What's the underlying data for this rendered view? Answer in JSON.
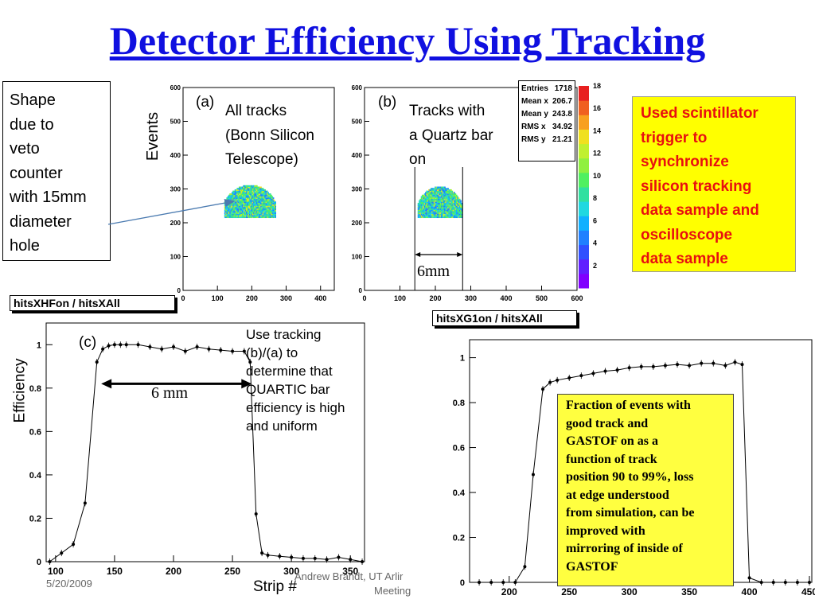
{
  "slide": {
    "title": "Detector Efficiency Using Tracking",
    "footer_date": "5/20/2009",
    "footer_author": "Andrew Brandt, UT Arlir",
    "footer_author2": "Meeting"
  },
  "notes": {
    "shape_lines": [
      "Shape",
      "due to",
      "veto",
      "counter",
      "with 15mm",
      "diameter",
      "hole"
    ],
    "sync_lines": [
      "Used scintillator",
      "trigger to",
      "synchronize",
      "silicon tracking",
      "data sample and",
      "oscilloscope",
      "data sample"
    ],
    "tracking_lines": [
      "Use tracking",
      "(b)/(a) to",
      "determine that",
      "QUARTIC bar",
      "efficiency is high",
      "and uniform"
    ],
    "fraction_lines": [
      "Fraction of events with",
      "good track and",
      "GASTOF on as a",
      "function of track",
      "position 90 to 99%, loss",
      "at edge understood",
      "from simulation, can be",
      "improved with",
      "mirroring of inside of",
      "GASTOF"
    ]
  },
  "colors": {
    "title": "#1010e0",
    "sync_text": "#e81010",
    "sync_bg": "#ffff00",
    "fraction_bg": "#ffff40"
  },
  "chart_data": [
    {
      "type": "heatmap",
      "id": "a",
      "tag": "(a)",
      "caption_lines": [
        "All tracks",
        "(Bonn Silicon",
        "Telescope)"
      ],
      "ylabel": "Events",
      "hist_title": "hitsXHFon / hitsXAll",
      "xlim": [
        0,
        440
      ],
      "ylim": [
        0,
        600
      ],
      "xticks": [
        0,
        100,
        200,
        300,
        400
      ],
      "yticks": [
        0,
        100,
        200,
        300,
        400,
        500,
        600
      ],
      "region": {
        "x_from": 120,
        "x_to": 270,
        "y_from": 215,
        "y_top": 310
      },
      "arrow_annotation": "Shape due to veto counter with 15mm diameter hole"
    },
    {
      "type": "heatmap",
      "id": "b",
      "tag": "(b)",
      "caption_lines": [
        "Tracks with",
        "a Quartz bar",
        "on"
      ],
      "hist_title": "hitsXG1on / hitsXAll",
      "xlim": [
        0,
        600
      ],
      "ylim": [
        0,
        600
      ],
      "xticks": [
        0,
        100,
        200,
        300,
        400,
        500,
        600
      ],
      "yticks": [
        0,
        100,
        200,
        300,
        400,
        500,
        600
      ],
      "region": {
        "x_from": 150,
        "x_to": 275,
        "y_from": 215,
        "y_top": 305
      },
      "width_annotation": "6mm",
      "stats": [
        {
          "label": "Entries",
          "value": "1718"
        },
        {
          "label": "Mean x",
          "value": "206.7"
        },
        {
          "label": "Mean y",
          "value": "243.8"
        },
        {
          "label": "RMS x",
          "value": "34.92"
        },
        {
          "label": "RMS y",
          "value": "21.21"
        }
      ],
      "colorbar": {
        "min": 0,
        "max": 18,
        "ticks": [
          2,
          4,
          6,
          8,
          10,
          12,
          14,
          16,
          18
        ]
      }
    },
    {
      "type": "line",
      "id": "c",
      "tag": "(c)",
      "xlabel": "Strip #",
      "ylabel": "Efficiency",
      "xlim": [
        92,
        362
      ],
      "ylim": [
        0,
        1.1
      ],
      "xticks": [
        100,
        150,
        200,
        250,
        300,
        350
      ],
      "yticks": [
        0,
        0.2,
        0.4,
        0.6,
        0.8,
        1
      ],
      "width_annotation": "6 mm",
      "series": [
        {
          "x": [
            95,
            105,
            115,
            125,
            135,
            140,
            145,
            150,
            155,
            160,
            170,
            180,
            190,
            200,
            210,
            220,
            230,
            240,
            250,
            260,
            265,
            270,
            275,
            280,
            290,
            300,
            310,
            320,
            330,
            340,
            350,
            360
          ],
          "y": [
            0.0,
            0.04,
            0.08,
            0.27,
            0.92,
            0.98,
            0.995,
            1.0,
            1.0,
            1.0,
            1.0,
            0.99,
            0.98,
            0.99,
            0.97,
            0.99,
            0.98,
            0.975,
            0.97,
            0.97,
            0.92,
            0.22,
            0.04,
            0.03,
            0.025,
            0.02,
            0.015,
            0.015,
            0.01,
            0.02,
            0.01,
            0.0
          ]
        }
      ]
    },
    {
      "type": "line",
      "id": "d",
      "xlim": [
        167,
        452
      ],
      "ylim": [
        0,
        1.08
      ],
      "xticks": [
        200,
        250,
        300,
        350,
        400,
        450
      ],
      "yticks": [
        0,
        0.2,
        0.4,
        0.6,
        0.8,
        1
      ],
      "series": [
        {
          "x": [
            175,
            185,
            195,
            205,
            213,
            220,
            228,
            234,
            240,
            250,
            260,
            270,
            280,
            290,
            300,
            310,
            320,
            330,
            340,
            350,
            360,
            370,
            380,
            388,
            394,
            400,
            410,
            420,
            430,
            440,
            450
          ],
          "y": [
            0.0,
            0.0,
            0.0,
            0.0,
            0.07,
            0.48,
            0.86,
            0.89,
            0.9,
            0.91,
            0.92,
            0.93,
            0.94,
            0.945,
            0.955,
            0.96,
            0.96,
            0.965,
            0.97,
            0.965,
            0.975,
            0.975,
            0.965,
            0.98,
            0.97,
            0.02,
            0.0,
            0.0,
            0.0,
            0.0,
            0.0
          ]
        }
      ]
    }
  ]
}
